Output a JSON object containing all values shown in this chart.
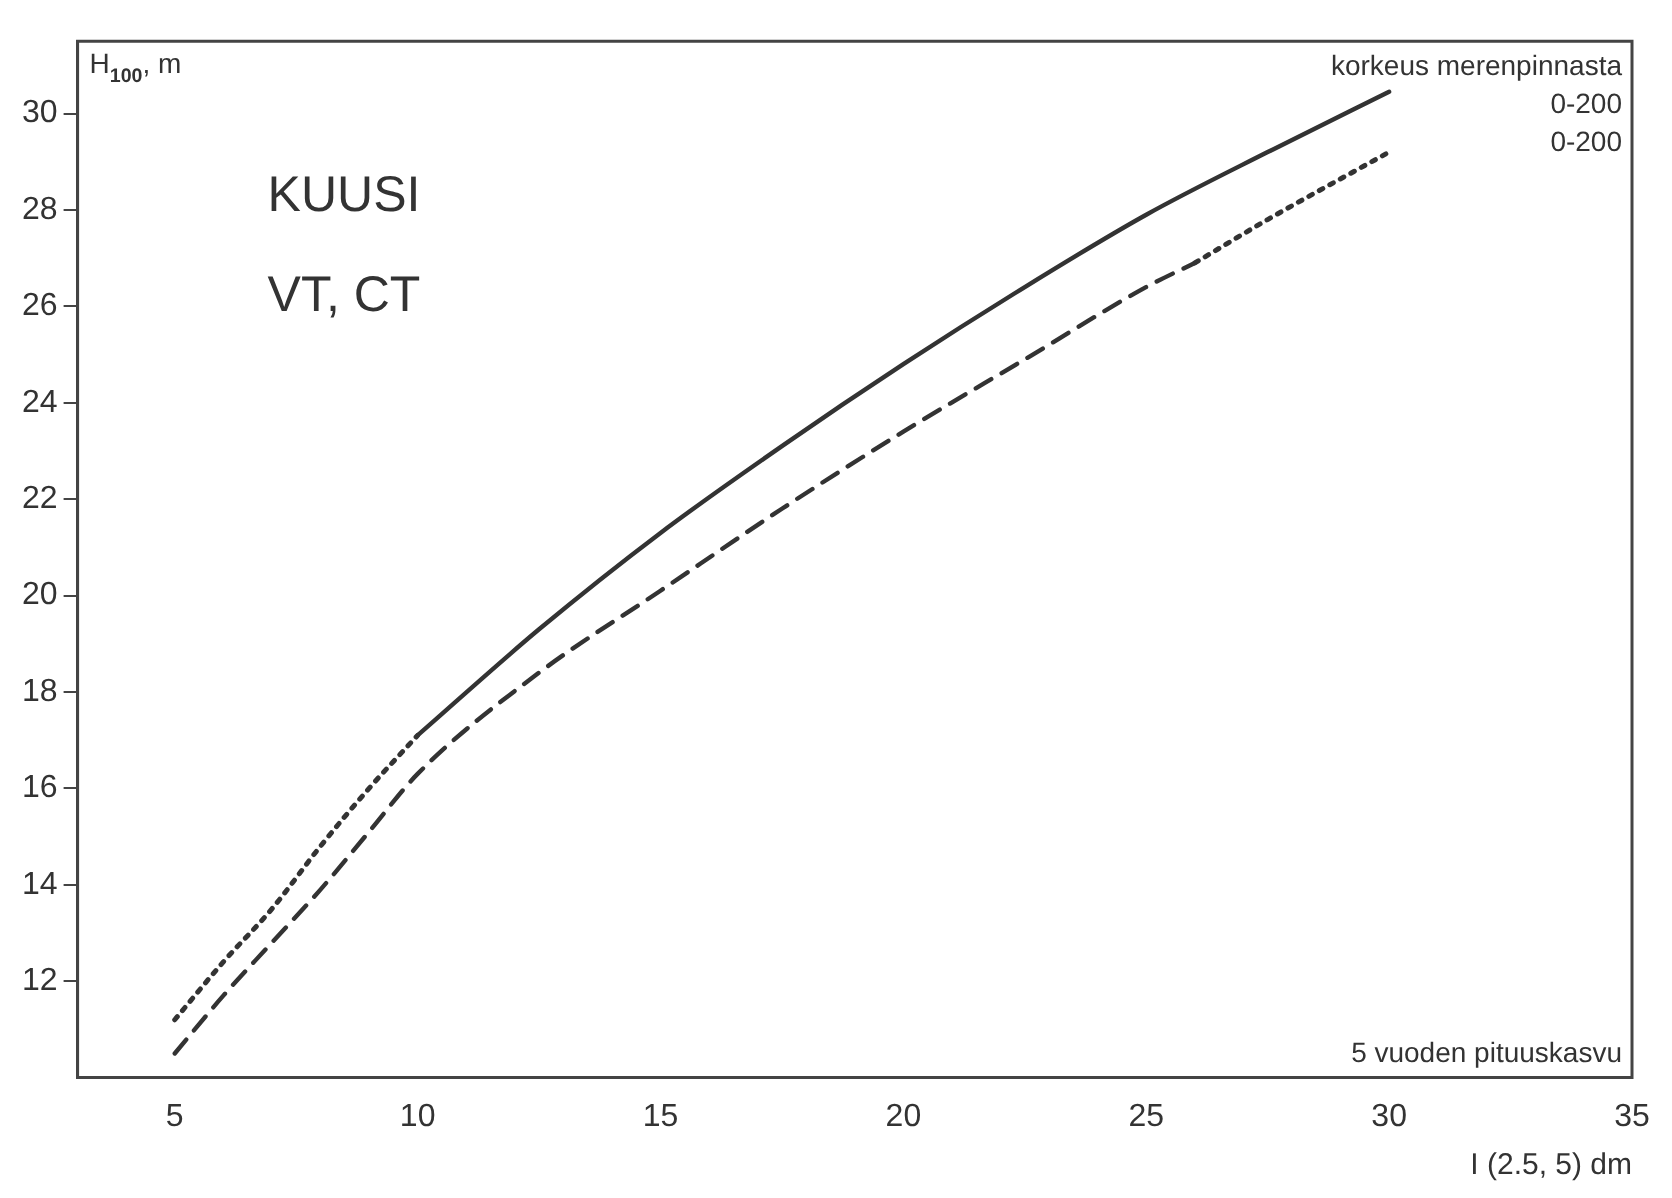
{
  "chart_data": {
    "type": "line",
    "xlabel": "I (2.5, 5) dm",
    "ylabel": "H$_{100}$, m",
    "legend_title": "korkeus merenpinnasta",
    "annotations": [
      "KUUSI",
      "VT, CT",
      "5 vuoden pituuskasvu"
    ],
    "xlim": [
      3,
      35
    ],
    "xticks": [
      5,
      10,
      15,
      20,
      25,
      30,
      35
    ],
    "ylim": [
      10,
      31.5
    ],
    "yticks": [
      12,
      14,
      16,
      18,
      20,
      22,
      24,
      26,
      28,
      30
    ],
    "grid": false,
    "marker": "none",
    "series": [
      {
        "color": "#333333",
        "line_style": "dotted",
        "x": [
          5,
          6,
          7,
          8,
          9,
          10
        ],
        "values": [
          11.2,
          12.4,
          13.5,
          14.8,
          16.0,
          17.1
        ]
      },
      {
        "name": "0-200",
        "color": "#333333",
        "line_style": "solid",
        "x": [
          10,
          12.5,
          15,
          17.5,
          20,
          22.5,
          25,
          27.5,
          30
        ],
        "values": [
          17.1,
          19.3,
          21.3,
          23.1,
          24.8,
          26.4,
          27.9,
          29.2,
          30.45
        ]
      },
      {
        "color": "#333333",
        "line_style": "dashed",
        "x": [
          5,
          6,
          7,
          8,
          9,
          10,
          12.5,
          15,
          17.5,
          20,
          22.5,
          25,
          26
        ],
        "values": [
          10.5,
          11.7,
          12.8,
          13.9,
          15.1,
          16.3,
          18.4,
          20.1,
          21.8,
          23.4,
          24.9,
          26.4,
          26.9
        ]
      },
      {
        "name": "0-200",
        "color": "#333333",
        "line_style": "dotted",
        "x": [
          26,
          27.5,
          30
        ],
        "values": [
          26.9,
          27.8,
          29.2
        ]
      }
    ]
  }
}
